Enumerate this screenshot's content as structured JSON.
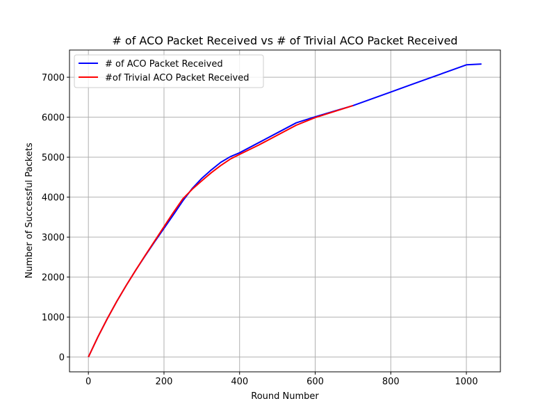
{
  "chart_data": {
    "type": "line",
    "title": "# of ACO Packet Received vs # of Trivial ACO Packet Received",
    "xlabel": "Round Number",
    "ylabel": "Number of Successful Packets",
    "xlim": [
      -50,
      1090
    ],
    "ylim": [
      -370,
      7680
    ],
    "xticks": [
      0,
      200,
      400,
      600,
      800,
      1000
    ],
    "yticks": [
      0,
      1000,
      2000,
      3000,
      4000,
      5000,
      6000,
      7000
    ],
    "grid": true,
    "legend_position": "top-left",
    "series": [
      {
        "name": "# of ACO Packet Received",
        "color": "#0000ff",
        "x": [
          0,
          25,
          50,
          75,
          100,
          125,
          150,
          175,
          200,
          225,
          250,
          275,
          300,
          325,
          350,
          375,
          400,
          450,
          500,
          550,
          600,
          650,
          700,
          750,
          800,
          850,
          900,
          950,
          1000,
          1040
        ],
        "y": [
          0,
          500,
          960,
          1390,
          1790,
          2170,
          2530,
          2880,
          3220,
          3560,
          3910,
          4220,
          4470,
          4680,
          4870,
          5010,
          5110,
          5360,
          5610,
          5860,
          6010,
          6150,
          6290,
          6460,
          6630,
          6800,
          6970,
          7140,
          7310,
          7330
        ]
      },
      {
        "name": "#of Trivial ACO Packet Received",
        "color": "#ff0000",
        "x": [
          0,
          25,
          50,
          75,
          100,
          125,
          150,
          175,
          200,
          225,
          250,
          275,
          300,
          325,
          350,
          375,
          400,
          450,
          500,
          550,
          600,
          650,
          700
        ],
        "y": [
          0,
          500,
          960,
          1390,
          1790,
          2170,
          2540,
          2900,
          3260,
          3620,
          3960,
          4200,
          4410,
          4610,
          4790,
          4950,
          5070,
          5300,
          5550,
          5800,
          5990,
          6140,
          6290
        ]
      }
    ]
  }
}
